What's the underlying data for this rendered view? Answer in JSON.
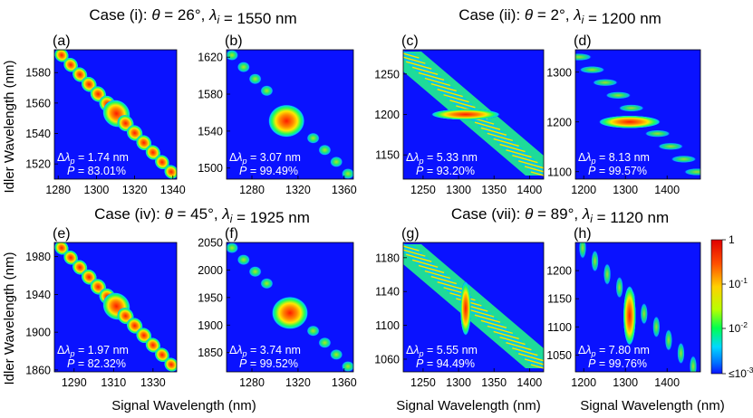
{
  "figure": {
    "ylabel_left": "Idler Wavelength (nm)",
    "xlabel_bottom": "Signal Wavelength (nm)",
    "colorbar": {
      "ticks": [
        "1",
        "10-1",
        "10-2",
        "≤10-3"
      ],
      "labels": [
        {
          "base": "1",
          "exp": ""
        },
        {
          "base": "10",
          "exp": "-1"
        },
        {
          "base": "10",
          "exp": "-2"
        },
        {
          "base": "≤10",
          "exp": "-3"
        }
      ]
    }
  },
  "cases": [
    {
      "label": "Case (i)",
      "theta": "26°",
      "lambda_i": "1550 nm"
    },
    {
      "label": "Case (ii)",
      "theta": "2°",
      "lambda_i": "1200 nm"
    },
    {
      "label": "Case (iv)",
      "theta": "45°",
      "lambda_i": "1925 nm"
    },
    {
      "label": "Case (vii)",
      "theta": "89°",
      "lambda_i": "1120 nm"
    }
  ],
  "chart_data": [
    {
      "id": "a",
      "type": "heatmap",
      "panel": "(a)",
      "xlim": [
        1278,
        1342
      ],
      "ylim": [
        1510,
        1595
      ],
      "xticks": [
        1280,
        1300,
        1320,
        1340
      ],
      "yticks": [
        1520,
        1540,
        1560,
        1580
      ],
      "pattern": "diagonal-lobes",
      "center": [
        1311,
        1550
      ],
      "delta_lambda_p": "1.74 nm",
      "purity": "83.01%"
    },
    {
      "id": "b",
      "type": "heatmap",
      "panel": "(b)",
      "xlim": [
        1258,
        1368
      ],
      "ylim": [
        1488,
        1628
      ],
      "xticks": [
        1280,
        1320,
        1360
      ],
      "yticks": [
        1500,
        1540,
        1580,
        1620
      ],
      "pattern": "central-lobe",
      "center": [
        1310,
        1551
      ],
      "delta_lambda_p": "3.07 nm",
      "purity": "99.49%"
    },
    {
      "id": "c",
      "type": "heatmap",
      "panel": "(c)",
      "xlim": [
        1222,
        1420
      ],
      "ylim": [
        1120,
        1280
      ],
      "xticks": [
        1250,
        1300,
        1350,
        1400
      ],
      "yticks": [
        1150,
        1200,
        1250
      ],
      "pattern": "striped-band",
      "center": [
        1310,
        1200
      ],
      "delta_lambda_p": "5.33 nm",
      "purity": "93.20%"
    },
    {
      "id": "d",
      "type": "heatmap",
      "panel": "(d)",
      "xlim": [
        1180,
        1480
      ],
      "ylim": [
        1085,
        1345
      ],
      "xticks": [
        1200,
        1300,
        1400
      ],
      "yticks": [
        1100,
        1200,
        1300
      ],
      "pattern": "horizontal-ellipse",
      "center": [
        1310,
        1200
      ],
      "delta_lambda_p": "8.13 nm",
      "purity": "99.57%"
    },
    {
      "id": "e",
      "type": "heatmap",
      "panel": "(e)",
      "xlim": [
        1280,
        1342
      ],
      "ylim": [
        1858,
        1995
      ],
      "xticks": [
        1290,
        1310,
        1330
      ],
      "yticks": [
        1860,
        1900,
        1940,
        1980
      ],
      "pattern": "diagonal-lobes",
      "center": [
        1311,
        1925
      ],
      "delta_lambda_p": "1.97 nm",
      "purity": "82.32%"
    },
    {
      "id": "f",
      "type": "heatmap",
      "panel": "(f)",
      "xlim": [
        1258,
        1368
      ],
      "ylim": [
        1815,
        2050
      ],
      "xticks": [
        1280,
        1320,
        1360
      ],
      "yticks": [
        1850,
        1900,
        1950,
        2000,
        2050
      ],
      "pattern": "central-lobe",
      "center": [
        1313,
        1922
      ],
      "delta_lambda_p": "3.74 nm",
      "purity": "99.52%"
    },
    {
      "id": "g",
      "type": "heatmap",
      "panel": "(g)",
      "xlim": [
        1222,
        1420
      ],
      "ylim": [
        1045,
        1198
      ],
      "xticks": [
        1250,
        1300,
        1350,
        1400
      ],
      "yticks": [
        1060,
        1100,
        1140,
        1180
      ],
      "pattern": "striped-band-vertical",
      "center": [
        1310,
        1120
      ],
      "delta_lambda_p": "5.55 nm",
      "purity": "94.49%"
    },
    {
      "id": "h",
      "type": "heatmap",
      "panel": "(h)",
      "xlim": [
        1180,
        1480
      ],
      "ylim": [
        1020,
        1250
      ],
      "xticks": [
        1200,
        1300,
        1400
      ],
      "yticks": [
        1050,
        1100,
        1150,
        1200
      ],
      "pattern": "vertical-ellipse",
      "center": [
        1310,
        1120
      ],
      "delta_lambda_p": "7.80 nm",
      "purity": "99.76%"
    }
  ],
  "colors": {
    "background": "#0a12ff",
    "low": "#00aaff",
    "mid": "#00ff66",
    "high": "#ffff00",
    "peak": "#ff1a00"
  }
}
